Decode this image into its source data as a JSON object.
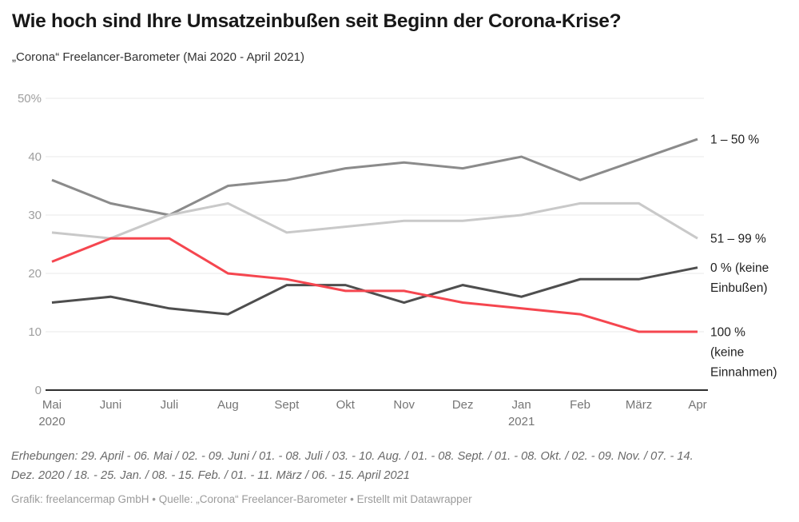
{
  "title": "Wie hoch sind Ihre Umsatzeinbußen seit Beginn der Corona-Krise?",
  "subtitle": "„Corona“ Freelancer-Barometer (Mai 2020 - April 2021)",
  "chart_data": {
    "type": "line",
    "title": "Wie hoch sind Ihre Umsatzeinbußen seit Beginn der Corona-Krise?",
    "subtitle": "„Corona“ Freelancer-Barometer (Mai 2020 - April 2021)",
    "xlabel": "",
    "ylabel": "",
    "ylim": [
      0,
      50
    ],
    "grid": "horizontal",
    "legend_position": "right-line-labels",
    "categories": [
      "Mai",
      "Juni",
      "Juli",
      "Aug",
      "Sept",
      "Okt",
      "Nov",
      "Dez",
      "Jan",
      "Feb",
      "März",
      "Apr"
    ],
    "year_labels": [
      {
        "index": 0,
        "label": "2020"
      },
      {
        "index": 8,
        "label": "2021"
      }
    ],
    "yticks": [
      {
        "value": 0,
        "label": "0"
      },
      {
        "value": 10,
        "label": "10"
      },
      {
        "value": 20,
        "label": "20"
      },
      {
        "value": 30,
        "label": "30"
      },
      {
        "value": 40,
        "label": "40"
      },
      {
        "value": 50,
        "label": "50%"
      }
    ],
    "series": [
      {
        "name": "1 – 50 %",
        "color": "#8b8b8b",
        "label_lines": [
          "1 – 50 %"
        ],
        "values": [
          36,
          32,
          30,
          35,
          36,
          38,
          39,
          38,
          40,
          36,
          39.5,
          43
        ]
      },
      {
        "name": "51 – 99 %",
        "color": "#c9c9c9",
        "label_lines": [
          "51 – 99 %"
        ],
        "values": [
          27,
          26,
          30,
          32,
          27,
          28,
          29,
          29,
          30,
          32,
          32,
          26
        ]
      },
      {
        "name": "0 % (keine Einbußen)",
        "color": "#4e4e4e",
        "label_lines": [
          "0 % (keine",
          "Einbußen)"
        ],
        "values": [
          15,
          16,
          14,
          13,
          18,
          18,
          15,
          18,
          16,
          19,
          19,
          21
        ]
      },
      {
        "name": "100 % (keine Einnahmen)",
        "color": "#f5464f",
        "label_lines": [
          "100 %",
          "(keine",
          "Einnahmen)"
        ],
        "values": [
          22,
          26,
          26,
          20,
          19,
          17,
          17,
          15,
          14,
          13,
          10,
          10
        ]
      }
    ],
    "colors": {
      "grid": "#e9e9e9",
      "axis": "#2e2e2e",
      "y_tick_text": "#9e9e9e",
      "x_tick_text": "#757575",
      "legend_text": "#222222"
    }
  },
  "footer": {
    "notes_lines": [
      "Erhebungen: 29. April - 06. Mai / 02. - 09. Juni / 01. - 08. Juli / 03. - 10. Aug. / 01. - 08. Sept. / 01. - 08. Okt. / 02. - 09. Nov. / 07. - 14.",
      "Dez. 2020 / 18. - 25. Jan. / 08. - 15. Feb. / 01. - 11. März / 06. - 15. April 2021"
    ],
    "attribution": "Grafik: freelancermap GmbH • Quelle: „Corona“ Freelancer-Barometer • Erstellt mit Datawrapper"
  }
}
